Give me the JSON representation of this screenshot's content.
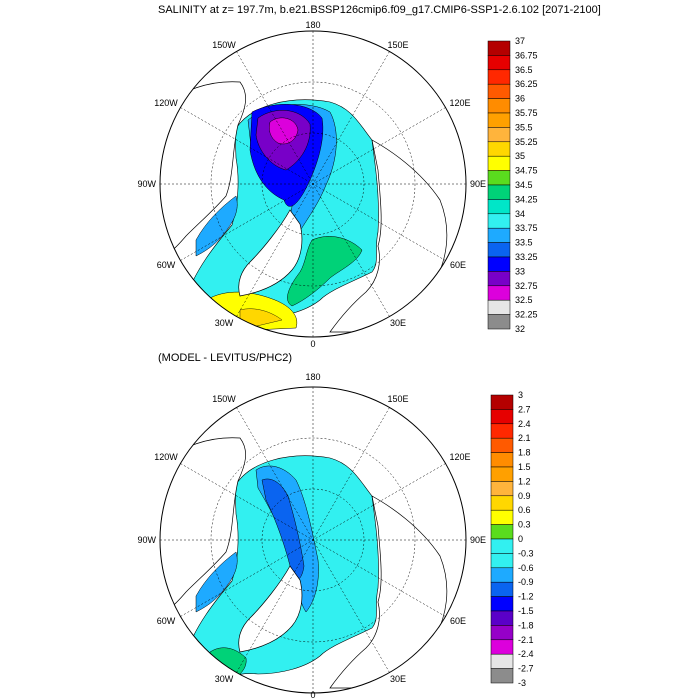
{
  "title": "SALINITY at z= 197.7m, b.e21.BSSP126cmip6.f09_g17.CMIP6-SSP1-2.6.102 [2071-2100]",
  "subtitle": "(MODEL - LEVITUS/PHC2)",
  "longitude_labels": [
    "180",
    "150E",
    "120E",
    "90E",
    "60E",
    "30E",
    "0",
    "30W",
    "60W",
    "90W",
    "120W",
    "150W"
  ],
  "top_panel": {
    "colorbar_labels": [
      "37",
      "36.75",
      "36.5",
      "36.25",
      "36",
      "35.75",
      "35.5",
      "35.25",
      "35",
      "34.75",
      "34.5",
      "34.25",
      "34",
      "33.75",
      "33.5",
      "33.25",
      "33",
      "32.75",
      "32.5",
      "32.25",
      "32"
    ],
    "colorbar_colors": [
      "#b40000",
      "#e60000",
      "#ff2800",
      "#ff5a00",
      "#ff8c00",
      "#ffa000",
      "#ffb43c",
      "#ffd700",
      "#ffff00",
      "#5adc1e",
      "#00d278",
      "#00e6c8",
      "#32f0f0",
      "#1eaaff",
      "#0a64f0",
      "#0000ff",
      "#7800c8",
      "#dc00dc",
      "#e6e6e6",
      "#8c8c8c"
    ]
  },
  "bottom_panel": {
    "colorbar_labels": [
      "3",
      "2.7",
      "2.4",
      "2.1",
      "1.8",
      "1.5",
      "1.2",
      "0.9",
      "0.6",
      "0.3",
      "0",
      "-0.3",
      "-0.6",
      "-0.9",
      "-1.2",
      "-1.5",
      "-1.8",
      "-2.1",
      "-2.4",
      "-2.7",
      "-3"
    ],
    "colorbar_colors": [
      "#b40000",
      "#e60000",
      "#ff2800",
      "#ff5a00",
      "#ff8c00",
      "#ffa000",
      "#ffb43c",
      "#ffd700",
      "#ffff00",
      "#5adc1e",
      "#32f0f0",
      "#32f0f0",
      "#1eaaff",
      "#0a64f0",
      "#0000ff",
      "#5a00c8",
      "#9600c8",
      "#dc00dc",
      "#e6e6e6",
      "#8c8c8c"
    ]
  },
  "colors": {
    "land": "#ffffff",
    "ocean_outline": "#000000"
  }
}
